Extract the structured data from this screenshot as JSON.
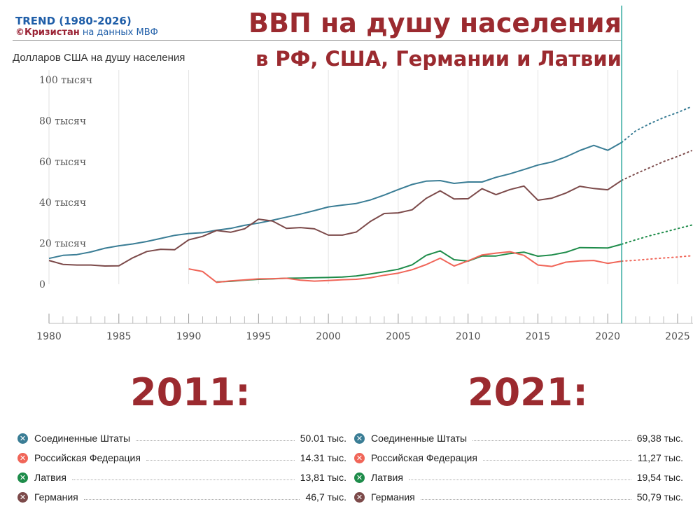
{
  "brand": {
    "line1": "TREND (1980-2026)",
    "line2a": "©Кризистан",
    "line2b": " на данных МВФ"
  },
  "title": {
    "line1": "ВВП на душу населения",
    "line2": "в РФ, США, Германии и Латвии"
  },
  "subtitle": "Долларов США на душу населения",
  "colors": {
    "usa": "#3a7d95",
    "russia": "#f06558",
    "latvia": "#1e8c4a",
    "germany": "#7c4a4a",
    "accent": "#9b2a2f",
    "divider": "#2aa79b"
  },
  "chart_data": {
    "type": "line",
    "xlim": [
      1980,
      2026
    ],
    "ylim": [
      0,
      100000
    ],
    "x_ticks": [
      1980,
      1985,
      1990,
      1995,
      2000,
      2005,
      2010,
      2015,
      2020,
      2025
    ],
    "y_ticks": [
      {
        "value": 0,
        "label": "0"
      },
      {
        "value": 20000,
        "label": "20 тысяч"
      },
      {
        "value": 40000,
        "label": "40 тысяч"
      },
      {
        "value": 60000,
        "label": "60 тысяч"
      },
      {
        "value": 80000,
        "label": "80 тысяч"
      },
      {
        "value": 100000,
        "label": "100 тысяч"
      }
    ],
    "forecast_start": 2021,
    "series": [
      {
        "name": "Соединенные Штаты",
        "color": "#3a7d95",
        "x": [
          1980,
          1981,
          1982,
          1983,
          1984,
          1985,
          1986,
          1987,
          1988,
          1989,
          1990,
          1991,
          1992,
          1993,
          1994,
          1995,
          1996,
          1997,
          1998,
          1999,
          2000,
          2001,
          2002,
          2003,
          2004,
          2005,
          2006,
          2007,
          2008,
          2009,
          2010,
          2011,
          2012,
          2013,
          2014,
          2015,
          2016,
          2017,
          2018,
          2019,
          2020,
          2021
        ],
        "y": [
          12600,
          14100,
          14500,
          15800,
          17600,
          18800,
          19700,
          20900,
          22400,
          23900,
          24800,
          25200,
          26400,
          27300,
          28800,
          29900,
          31300,
          32800,
          34300,
          36000,
          37800,
          38700,
          39500,
          41200,
          43600,
          46300,
          48800,
          50400,
          50700,
          49300,
          50000,
          50010,
          52300,
          54000,
          56100,
          58300,
          59800,
          62300,
          65400,
          67900,
          65500,
          69380
        ],
        "forecast_x": [
          2021,
          2022,
          2023,
          2024,
          2025,
          2026
        ],
        "forecast_y": [
          69380,
          75000,
          78500,
          81500,
          84000,
          86900
        ]
      },
      {
        "name": "Германия",
        "color": "#7c4a4a",
        "x": [
          1980,
          1981,
          1982,
          1983,
          1984,
          1985,
          1986,
          1987,
          1988,
          1989,
          1990,
          1991,
          1992,
          1993,
          1994,
          1995,
          1996,
          1997,
          1998,
          1999,
          2000,
          2001,
          2002,
          2003,
          2004,
          2005,
          2006,
          2007,
          2008,
          2009,
          2010,
          2011,
          2012,
          2013,
          2014,
          2015,
          2016,
          2017,
          2018,
          2019,
          2020,
          2021
        ],
        "y": [
          11600,
          9700,
          9400,
          9400,
          8900,
          9000,
          12900,
          16000,
          17100,
          16900,
          21700,
          23400,
          26300,
          25400,
          27100,
          31800,
          30900,
          27300,
          27700,
          27100,
          24000,
          24000,
          25500,
          30700,
          34600,
          34900,
          36400,
          42000,
          45700,
          41700,
          41800,
          46700,
          43800,
          46300,
          48000,
          41100,
          42100,
          44600,
          47900,
          46800,
          46200,
          50790
        ],
        "forecast_x": [
          2021,
          2022,
          2023,
          2024,
          2025,
          2026
        ],
        "forecast_y": [
          50790,
          54000,
          57000,
          60000,
          62500,
          65300
        ]
      },
      {
        "name": "Латвия",
        "color": "#1e8c4a",
        "x": [
          1992,
          1993,
          1994,
          1995,
          1996,
          1997,
          1998,
          1999,
          2000,
          2001,
          2002,
          2003,
          2004,
          2005,
          2006,
          2007,
          2008,
          2009,
          2010,
          2011,
          2012,
          2013,
          2014,
          2015,
          2016,
          2017,
          2018,
          2019,
          2020,
          2021
        ],
        "y": [
          1100,
          1400,
          2000,
          2400,
          2600,
          2900,
          3000,
          3200,
          3300,
          3500,
          4000,
          5000,
          6100,
          7300,
          9500,
          14100,
          16300,
          12000,
          11300,
          13810,
          13800,
          15000,
          15700,
          13700,
          14300,
          15600,
          17900,
          17800,
          17700,
          19540
        ],
        "forecast_x": [
          2021,
          2022,
          2023,
          2024,
          2025,
          2026
        ],
        "forecast_y": [
          19540,
          21700,
          23700,
          25400,
          27200,
          28900
        ]
      },
      {
        "name": "Российская Федерация",
        "color": "#f06558",
        "x": [
          1990,
          1991,
          1992,
          1993,
          1994,
          1995,
          1996,
          1997,
          1998,
          1999,
          2000,
          2001,
          2002,
          2003,
          2004,
          2005,
          2006,
          2007,
          2008,
          2009,
          2010,
          2011,
          2012,
          2013,
          2014,
          2015,
          2016,
          2017,
          2018,
          2019,
          2020,
          2021
        ],
        "y": [
          7500,
          6200,
          900,
          1600,
          2100,
          2600,
          2700,
          2900,
          2000,
          1500,
          1800,
          2200,
          2400,
          3100,
          4400,
          5400,
          7100,
          9600,
          12700,
          8900,
          11400,
          14310,
          15200,
          15900,
          14100,
          9400,
          8700,
          10800,
          11400,
          11600,
          10200,
          11270
        ],
        "forecast_x": [
          2021,
          2022,
          2023,
          2024,
          2025,
          2026
        ],
        "forecast_y": [
          11270,
          11700,
          12300,
          12800,
          13300,
          13900
        ]
      }
    ]
  },
  "summary": {
    "left": {
      "year": "2011:",
      "rows": [
        {
          "name": "Соединенные Штаты",
          "value": "50.01 тыс.",
          "color": "#3a7d95"
        },
        {
          "name": "Российская Федерация",
          "value": "14.31 тыс.",
          "color": "#f06558"
        },
        {
          "name": "Латвия",
          "value": "13,81 тыс.",
          "color": "#1e8c4a"
        },
        {
          "name": "Германия",
          "value": "46,7 тыс.",
          "color": "#7c4a4a"
        }
      ]
    },
    "right": {
      "year": "2021:",
      "rows": [
        {
          "name": "Соединенные Штаты",
          "value": "69,38 тыс.",
          "color": "#3a7d95"
        },
        {
          "name": "Российская Федерация",
          "value": "11,27 тыс.",
          "color": "#f06558"
        },
        {
          "name": "Латвия",
          "value": "19,54 тыс.",
          "color": "#1e8c4a"
        },
        {
          "name": "Германия",
          "value": "50,79 тыс.",
          "color": "#7c4a4a"
        }
      ]
    }
  }
}
